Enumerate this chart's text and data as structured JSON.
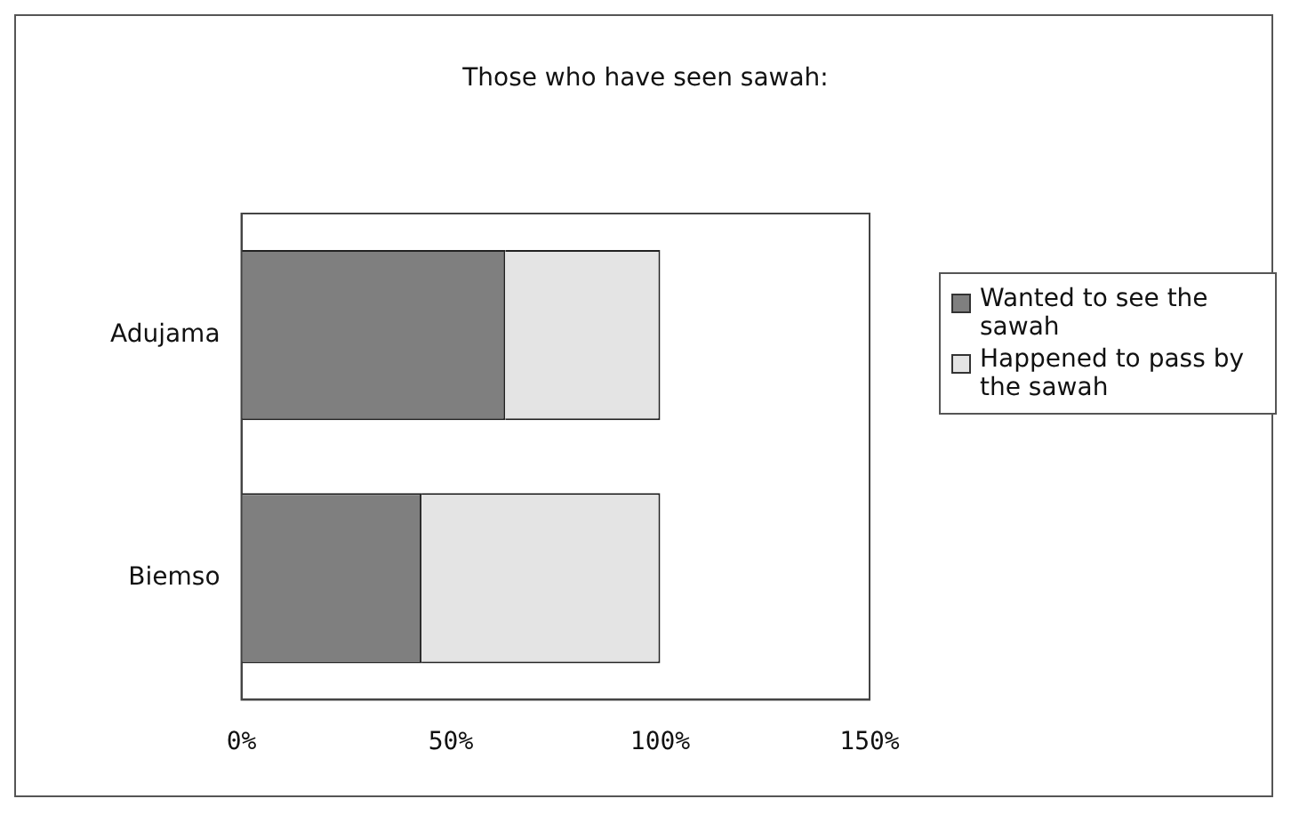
{
  "chart_data": {
    "type": "bar",
    "orientation": "horizontal",
    "stacked": true,
    "title": "Those who have seen sawah:",
    "categories": [
      "Adujama",
      "Biemso"
    ],
    "series": [
      {
        "name": "Wanted to see the sawah",
        "color": "#7f7f7f",
        "values": [
          63,
          43
        ]
      },
      {
        "name": "Happened to pass by the sawah",
        "color": "#e4e4e4",
        "values": [
          37,
          57
        ]
      }
    ],
    "xlim": [
      0,
      150
    ],
    "xticks": [
      {
        "value": 0,
        "label": "0%"
      },
      {
        "value": 50,
        "label": "50%"
      },
      {
        "value": 100,
        "label": "100%"
      },
      {
        "value": 150,
        "label": "150%"
      }
    ],
    "grid": false,
    "legend": "right"
  }
}
